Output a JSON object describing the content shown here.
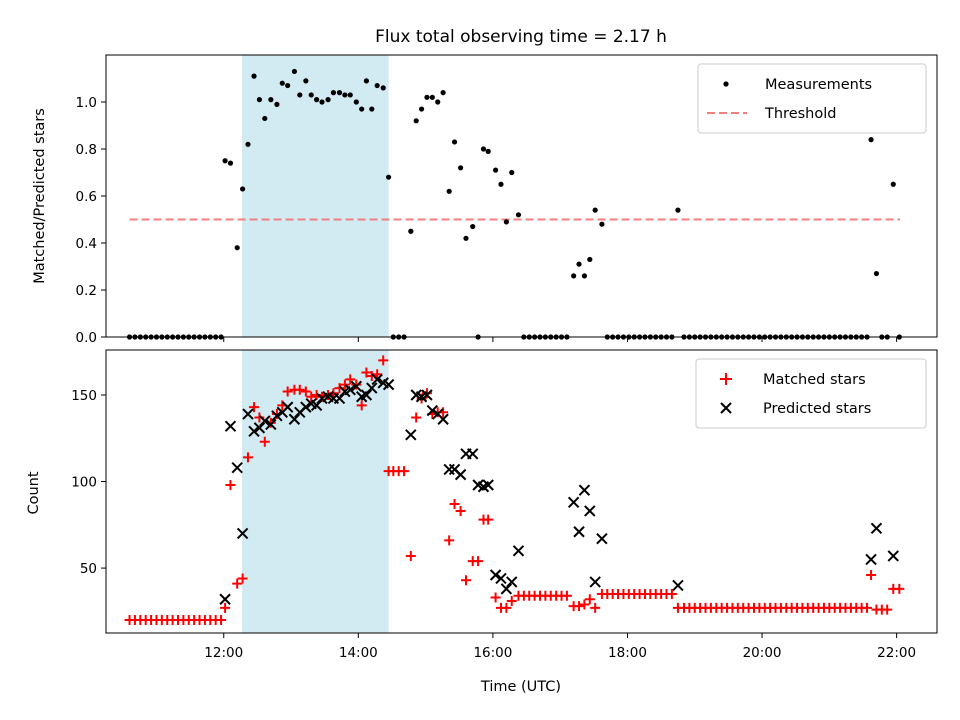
{
  "chart_data": {
    "title": "Flux total observing time = 2.17 h",
    "xlabel": "Time (UTC)",
    "colors": {
      "measurement": "#000000",
      "threshold": "#f08080",
      "matched": "#ff0000",
      "predicted": "#000000",
      "shade": "#add8e6"
    },
    "xlim": [
      10.25,
      22.6
    ],
    "xticks": [
      {
        "value": 12,
        "label": "12:00"
      },
      {
        "value": 14,
        "label": "14:00"
      },
      {
        "value": 16,
        "label": "16:00"
      },
      {
        "value": 18,
        "label": "18:00"
      },
      {
        "value": 20,
        "label": "20:00"
      },
      {
        "value": 22,
        "label": "22:00"
      }
    ],
    "shaded_span": [
      12.27,
      14.45
    ],
    "top": {
      "type": "scatter",
      "ylabel": "Matched/Predicted stars",
      "ylim": [
        0,
        1.2
      ],
      "yticks": [
        {
          "value": 0,
          "label": "0.0"
        },
        {
          "value": 0.2,
          "label": "0.2"
        },
        {
          "value": 0.4,
          "label": "0.4"
        },
        {
          "value": 0.6,
          "label": "0.6"
        },
        {
          "value": 0.8,
          "label": "0.8"
        },
        {
          "value": 1.0,
          "label": "1.0"
        }
      ],
      "legend": {
        "placement": "top-right",
        "measurements": "Measurements",
        "threshold": "Threshold"
      },
      "threshold": {
        "value": 0.5,
        "x": [
          10.6,
          22.05
        ]
      },
      "measurements": [
        [
          10.6,
          0
        ],
        [
          10.68,
          0
        ],
        [
          10.76,
          0
        ],
        [
          10.84,
          0
        ],
        [
          10.92,
          0
        ],
        [
          11.0,
          0
        ],
        [
          11.08,
          0
        ],
        [
          11.16,
          0
        ],
        [
          11.24,
          0
        ],
        [
          11.32,
          0
        ],
        [
          11.4,
          0
        ],
        [
          11.48,
          0
        ],
        [
          11.56,
          0
        ],
        [
          11.64,
          0
        ],
        [
          11.72,
          0
        ],
        [
          11.8,
          0
        ],
        [
          11.88,
          0
        ],
        [
          11.96,
          0
        ],
        [
          12.02,
          0.75
        ],
        [
          12.1,
          0.74
        ],
        [
          12.2,
          0.38
        ],
        [
          12.28,
          0.63
        ],
        [
          12.36,
          0.82
        ],
        [
          12.45,
          1.11
        ],
        [
          12.53,
          1.01
        ],
        [
          12.61,
          0.93
        ],
        [
          12.7,
          1.01
        ],
        [
          12.79,
          0.99
        ],
        [
          12.87,
          1.08
        ],
        [
          12.95,
          1.07
        ],
        [
          13.05,
          1.13
        ],
        [
          13.13,
          1.03
        ],
        [
          13.22,
          1.09
        ],
        [
          13.3,
          1.03
        ],
        [
          13.38,
          1.01
        ],
        [
          13.46,
          1.0
        ],
        [
          13.55,
          1.01
        ],
        [
          13.63,
          1.04
        ],
        [
          13.72,
          1.04
        ],
        [
          13.8,
          1.03
        ],
        [
          13.88,
          1.03
        ],
        [
          13.97,
          1.0
        ],
        [
          14.05,
          0.97
        ],
        [
          14.12,
          1.09
        ],
        [
          14.2,
          0.97
        ],
        [
          14.28,
          1.07
        ],
        [
          14.37,
          1.06
        ],
        [
          14.45,
          0.68
        ],
        [
          14.52,
          0
        ],
        [
          14.6,
          0
        ],
        [
          14.68,
          0
        ],
        [
          14.78,
          0.45
        ],
        [
          14.86,
          0.92
        ],
        [
          14.94,
          0.97
        ],
        [
          15.02,
          1.02
        ],
        [
          15.1,
          1.02
        ],
        [
          15.18,
          1.0
        ],
        [
          15.26,
          1.04
        ],
        [
          15.35,
          0.62
        ],
        [
          15.43,
          0.83
        ],
        [
          15.52,
          0.72
        ],
        [
          15.6,
          0.42
        ],
        [
          15.7,
          0.47
        ],
        [
          15.78,
          0
        ],
        [
          15.86,
          0.8
        ],
        [
          15.93,
          0.79
        ],
        [
          16.04,
          0.71
        ],
        [
          16.12,
          0.65
        ],
        [
          16.2,
          0.49
        ],
        [
          16.28,
          0.7
        ],
        [
          16.38,
          0.52
        ],
        [
          16.46,
          0
        ],
        [
          16.54,
          0
        ],
        [
          16.62,
          0
        ],
        [
          16.7,
          0
        ],
        [
          16.78,
          0
        ],
        [
          16.86,
          0
        ],
        [
          16.94,
          0
        ],
        [
          17.02,
          0
        ],
        [
          17.1,
          0
        ],
        [
          17.2,
          0.26
        ],
        [
          17.28,
          0.31
        ],
        [
          17.36,
          0.26
        ],
        [
          17.44,
          0.33
        ],
        [
          17.52,
          0.54
        ],
        [
          17.62,
          0.48
        ],
        [
          17.7,
          0
        ],
        [
          17.78,
          0
        ],
        [
          17.86,
          0
        ],
        [
          17.94,
          0
        ],
        [
          18.02,
          0
        ],
        [
          18.1,
          0
        ],
        [
          18.18,
          0
        ],
        [
          18.26,
          0
        ],
        [
          18.34,
          0
        ],
        [
          18.42,
          0
        ],
        [
          18.5,
          0
        ],
        [
          18.58,
          0
        ],
        [
          18.66,
          0
        ],
        [
          18.75,
          0.54
        ],
        [
          18.84,
          0
        ],
        [
          18.92,
          0
        ],
        [
          19.0,
          0
        ],
        [
          19.08,
          0
        ],
        [
          19.16,
          0
        ],
        [
          19.24,
          0
        ],
        [
          19.32,
          0
        ],
        [
          19.4,
          0
        ],
        [
          19.48,
          0
        ],
        [
          19.56,
          0
        ],
        [
          19.64,
          0
        ],
        [
          19.72,
          0
        ],
        [
          19.8,
          0
        ],
        [
          19.88,
          0
        ],
        [
          19.96,
          0
        ],
        [
          20.04,
          0
        ],
        [
          20.12,
          0
        ],
        [
          20.2,
          0
        ],
        [
          20.28,
          0
        ],
        [
          20.36,
          0
        ],
        [
          20.44,
          0
        ],
        [
          20.52,
          0
        ],
        [
          20.6,
          0
        ],
        [
          20.68,
          0
        ],
        [
          20.76,
          0
        ],
        [
          20.84,
          0
        ],
        [
          20.92,
          0
        ],
        [
          21.0,
          0
        ],
        [
          21.08,
          0
        ],
        [
          21.16,
          0
        ],
        [
          21.24,
          0
        ],
        [
          21.32,
          0
        ],
        [
          21.4,
          0
        ],
        [
          21.48,
          0
        ],
        [
          21.56,
          0
        ],
        [
          21.62,
          0.84
        ],
        [
          21.7,
          0.27
        ],
        [
          21.78,
          0
        ],
        [
          21.86,
          0
        ],
        [
          21.95,
          0.65
        ],
        [
          22.04,
          0
        ]
      ]
    },
    "bottom": {
      "type": "scatter",
      "ylabel": "Count",
      "ylim": [
        12.5,
        176
      ],
      "yticks": [
        {
          "value": 50,
          "label": "50"
        },
        {
          "value": 100,
          "label": "100"
        },
        {
          "value": 150,
          "label": "150"
        }
      ],
      "legend": {
        "placement": "top-right",
        "matched": "Matched stars",
        "predicted": "Predicted stars"
      },
      "matched": [
        [
          10.6,
          20
        ],
        [
          10.68,
          20
        ],
        [
          10.76,
          20
        ],
        [
          10.84,
          20
        ],
        [
          10.92,
          20
        ],
        [
          11.0,
          20
        ],
        [
          11.08,
          20
        ],
        [
          11.16,
          20
        ],
        [
          11.24,
          20
        ],
        [
          11.32,
          20
        ],
        [
          11.4,
          20
        ],
        [
          11.48,
          20
        ],
        [
          11.56,
          20
        ],
        [
          11.64,
          20
        ],
        [
          11.72,
          20
        ],
        [
          11.8,
          20
        ],
        [
          11.88,
          20
        ],
        [
          11.96,
          20
        ],
        [
          12.02,
          27
        ],
        [
          12.1,
          98
        ],
        [
          12.2,
          41
        ],
        [
          12.28,
          44
        ],
        [
          12.36,
          114
        ],
        [
          12.45,
          143
        ],
        [
          12.53,
          137
        ],
        [
          12.61,
          123
        ],
        [
          12.7,
          134
        ],
        [
          12.79,
          139
        ],
        [
          12.87,
          144
        ],
        [
          12.95,
          152
        ],
        [
          13.05,
          153
        ],
        [
          13.13,
          153
        ],
        [
          13.22,
          152
        ],
        [
          13.3,
          149
        ],
        [
          13.38,
          150
        ],
        [
          13.46,
          149
        ],
        [
          13.55,
          150
        ],
        [
          13.63,
          151
        ],
        [
          13.72,
          154
        ],
        [
          13.8,
          156
        ],
        [
          13.88,
          159
        ],
        [
          13.97,
          156
        ],
        [
          14.05,
          144
        ],
        [
          14.12,
          163
        ],
        [
          14.2,
          161
        ],
        [
          14.28,
          162
        ],
        [
          14.37,
          170
        ],
        [
          14.45,
          106
        ],
        [
          14.52,
          106
        ],
        [
          14.6,
          106
        ],
        [
          14.68,
          106
        ],
        [
          14.78,
          57
        ],
        [
          14.86,
          137
        ],
        [
          14.94,
          148
        ],
        [
          15.02,
          151
        ],
        [
          15.1,
          139
        ],
        [
          15.18,
          140
        ],
        [
          15.26,
          140
        ],
        [
          15.35,
          66
        ],
        [
          15.43,
          87
        ],
        [
          15.52,
          83
        ],
        [
          15.6,
          43
        ],
        [
          15.7,
          54
        ],
        [
          15.78,
          54
        ],
        [
          15.86,
          78
        ],
        [
          15.93,
          78
        ],
        [
          16.04,
          33
        ],
        [
          16.12,
          27
        ],
        [
          16.2,
          27
        ],
        [
          16.28,
          31
        ],
        [
          16.38,
          34
        ],
        [
          16.46,
          34
        ],
        [
          16.54,
          34
        ],
        [
          16.62,
          34
        ],
        [
          16.7,
          34
        ],
        [
          16.78,
          34
        ],
        [
          16.86,
          34
        ],
        [
          16.94,
          34
        ],
        [
          17.02,
          34
        ],
        [
          17.1,
          34
        ],
        [
          17.2,
          28
        ],
        [
          17.28,
          28
        ],
        [
          17.36,
          29
        ],
        [
          17.44,
          32
        ],
        [
          17.52,
          27
        ],
        [
          17.62,
          35
        ],
        [
          17.7,
          35
        ],
        [
          17.78,
          35
        ],
        [
          17.86,
          35
        ],
        [
          17.94,
          35
        ],
        [
          18.02,
          35
        ],
        [
          18.1,
          35
        ],
        [
          18.18,
          35
        ],
        [
          18.26,
          35
        ],
        [
          18.34,
          35
        ],
        [
          18.42,
          35
        ],
        [
          18.5,
          35
        ],
        [
          18.58,
          35
        ],
        [
          18.66,
          35
        ],
        [
          18.75,
          27
        ],
        [
          18.84,
          27
        ],
        [
          18.92,
          27
        ],
        [
          19.0,
          27
        ],
        [
          19.08,
          27
        ],
        [
          19.16,
          27
        ],
        [
          19.24,
          27
        ],
        [
          19.32,
          27
        ],
        [
          19.4,
          27
        ],
        [
          19.48,
          27
        ],
        [
          19.56,
          27
        ],
        [
          19.64,
          27
        ],
        [
          19.72,
          27
        ],
        [
          19.8,
          27
        ],
        [
          19.88,
          27
        ],
        [
          19.96,
          27
        ],
        [
          20.04,
          27
        ],
        [
          20.12,
          27
        ],
        [
          20.2,
          27
        ],
        [
          20.28,
          27
        ],
        [
          20.36,
          27
        ],
        [
          20.44,
          27
        ],
        [
          20.52,
          27
        ],
        [
          20.6,
          27
        ],
        [
          20.68,
          27
        ],
        [
          20.76,
          27
        ],
        [
          20.84,
          27
        ],
        [
          20.92,
          27
        ],
        [
          21.0,
          27
        ],
        [
          21.08,
          27
        ],
        [
          21.16,
          27
        ],
        [
          21.24,
          27
        ],
        [
          21.32,
          27
        ],
        [
          21.4,
          27
        ],
        [
          21.48,
          27
        ],
        [
          21.56,
          27
        ],
        [
          21.62,
          46
        ],
        [
          21.7,
          26
        ],
        [
          21.78,
          26
        ],
        [
          21.86,
          26
        ],
        [
          21.95,
          38
        ],
        [
          22.04,
          38
        ]
      ],
      "predicted": [
        [
          12.02,
          32
        ],
        [
          12.1,
          132
        ],
        [
          12.2,
          108
        ],
        [
          12.28,
          70
        ],
        [
          12.36,
          139
        ],
        [
          12.45,
          129
        ],
        [
          12.53,
          131
        ],
        [
          12.61,
          135
        ],
        [
          12.7,
          133
        ],
        [
          12.79,
          138
        ],
        [
          12.87,
          140
        ],
        [
          12.95,
          143
        ],
        [
          13.05,
          136
        ],
        [
          13.13,
          140
        ],
        [
          13.22,
          143
        ],
        [
          13.3,
          145
        ],
        [
          13.38,
          144
        ],
        [
          13.46,
          148
        ],
        [
          13.55,
          149
        ],
        [
          13.63,
          148
        ],
        [
          13.72,
          148
        ],
        [
          13.8,
          152
        ],
        [
          13.88,
          153
        ],
        [
          13.97,
          155
        ],
        [
          14.05,
          149
        ],
        [
          14.12,
          150
        ],
        [
          14.2,
          154
        ],
        [
          14.28,
          159
        ],
        [
          14.37,
          157
        ],
        [
          14.45,
          156
        ],
        [
          14.78,
          127
        ],
        [
          14.86,
          150
        ],
        [
          14.94,
          149
        ],
        [
          15.02,
          150
        ],
        [
          15.1,
          141
        ],
        [
          15.18,
          139
        ],
        [
          15.26,
          136
        ],
        [
          15.35,
          107
        ],
        [
          15.43,
          107
        ],
        [
          15.52,
          104
        ],
        [
          15.6,
          116
        ],
        [
          15.7,
          116
        ],
        [
          15.78,
          98
        ],
        [
          15.86,
          97
        ],
        [
          15.93,
          98
        ],
        [
          16.04,
          46
        ],
        [
          16.12,
          44
        ],
        [
          16.2,
          38
        ],
        [
          16.28,
          42
        ],
        [
          16.38,
          60
        ],
        [
          17.2,
          88
        ],
        [
          17.28,
          71
        ],
        [
          17.36,
          95
        ],
        [
          17.44,
          83
        ],
        [
          17.52,
          42
        ],
        [
          17.62,
          67
        ],
        [
          18.75,
          40
        ],
        [
          21.62,
          55
        ],
        [
          21.7,
          73
        ],
        [
          21.95,
          57
        ]
      ]
    }
  }
}
